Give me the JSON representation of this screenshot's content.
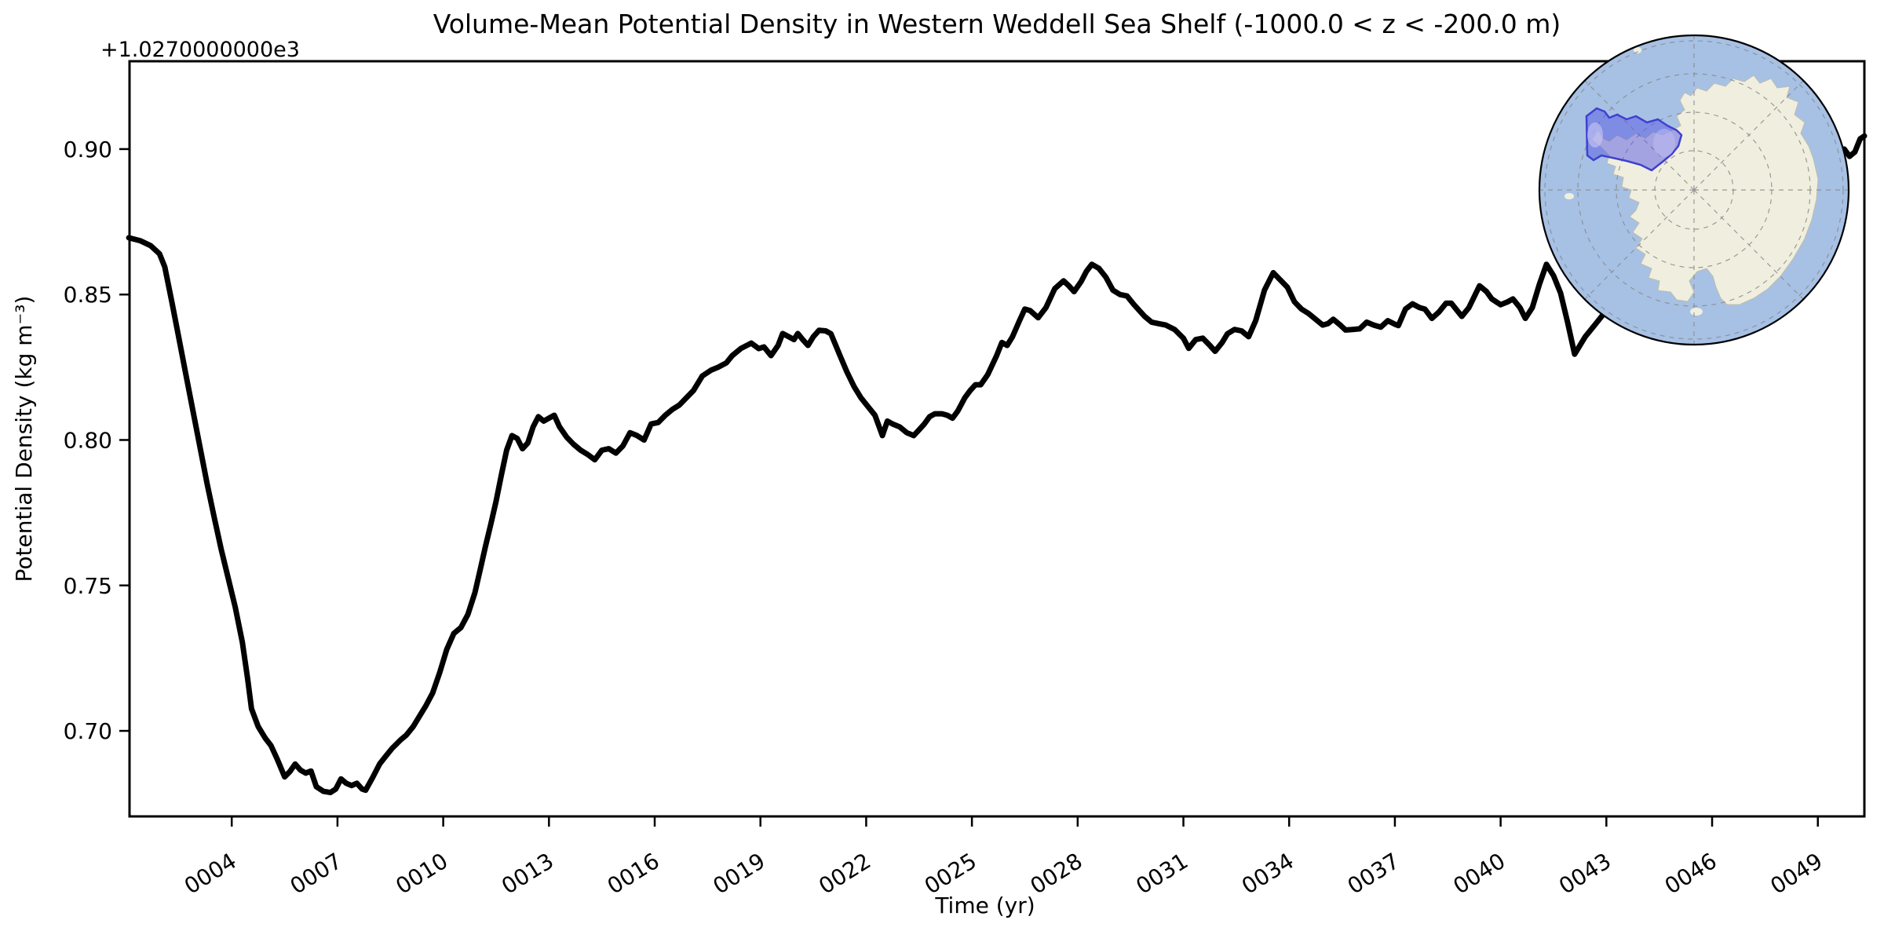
{
  "title": "Volume-Mean Potential Density in Western Weddell Sea Shelf (-1000.0 < z < -200.0 m)",
  "offset_text": "+1.0270000000e3",
  "x_axis": {
    "label": "Time (yr)",
    "tick_labels": [
      "0004",
      "0007",
      "0010",
      "0013",
      "0016",
      "0019",
      "0022",
      "0025",
      "0028",
      "0031",
      "0034",
      "0037",
      "0040",
      "0043",
      "0046",
      "0049"
    ],
    "tick_years": [
      4,
      7,
      10,
      13,
      16,
      19,
      22,
      25,
      28,
      31,
      34,
      37,
      40,
      43,
      46,
      49
    ]
  },
  "y_axis": {
    "label": "Potential Density (kg m⁻³)",
    "tick_labels": [
      "0.90",
      "0.85",
      "0.80",
      "0.75",
      "0.70"
    ],
    "tick_values": [
      0.9,
      0.85,
      0.8,
      0.75,
      0.7
    ]
  },
  "chart_data": {
    "type": "line",
    "title": "Volume-Mean Potential Density in Western Weddell Sea Shelf (-1000.0 < z < -200.0 m)",
    "xlabel": "Time (yr)",
    "ylabel": "Potential Density (kg m⁻³)",
    "y_offset_note": "y values are relative to +1.0270000000e3 kg m⁻³",
    "xlim": [
      1.1,
      50.32
    ],
    "ylim": [
      0.6706,
      0.9302
    ],
    "grid": false,
    "legend": "none",
    "line_color": "#000000",
    "line_width": 7,
    "points": [
      [
        1.08,
        0.8695
      ],
      [
        1.4,
        0.8685
      ],
      [
        1.7,
        0.8668
      ],
      [
        1.95,
        0.864
      ],
      [
        2.1,
        0.8595
      ],
      [
        2.3,
        0.8475
      ],
      [
        2.5,
        0.835
      ],
      [
        2.7,
        0.8225
      ],
      [
        2.9,
        0.81
      ],
      [
        3.1,
        0.7975
      ],
      [
        3.3,
        0.785
      ],
      [
        3.5,
        0.7735
      ],
      [
        3.7,
        0.7625
      ],
      [
        3.9,
        0.7525
      ],
      [
        4.1,
        0.7425
      ],
      [
        4.3,
        0.7305
      ],
      [
        4.45,
        0.718
      ],
      [
        4.56,
        0.7076
      ],
      [
        4.75,
        0.7015
      ],
      [
        4.95,
        0.6975
      ],
      [
        5.11,
        0.695
      ],
      [
        5.3,
        0.69
      ],
      [
        5.5,
        0.6842
      ],
      [
        5.65,
        0.686
      ],
      [
        5.8,
        0.6886
      ],
      [
        5.95,
        0.6865
      ],
      [
        6.1,
        0.6855
      ],
      [
        6.25,
        0.6862
      ],
      [
        6.4,
        0.6808
      ],
      [
        6.6,
        0.6792
      ],
      [
        6.8,
        0.6788
      ],
      [
        6.95,
        0.68
      ],
      [
        7.1,
        0.6835
      ],
      [
        7.25,
        0.682
      ],
      [
        7.4,
        0.6812
      ],
      [
        7.55,
        0.682
      ],
      [
        7.7,
        0.68
      ],
      [
        7.8,
        0.6796
      ],
      [
        8.0,
        0.684
      ],
      [
        8.2,
        0.6887
      ],
      [
        8.35,
        0.691
      ],
      [
        8.55,
        0.694
      ],
      [
        8.8,
        0.697
      ],
      [
        8.95,
        0.6985
      ],
      [
        9.15,
        0.7015
      ],
      [
        9.35,
        0.7055
      ],
      [
        9.5,
        0.7085
      ],
      [
        9.7,
        0.713
      ],
      [
        9.9,
        0.72
      ],
      [
        10.1,
        0.728
      ],
      [
        10.3,
        0.7335
      ],
      [
        10.5,
        0.7355
      ],
      [
        10.7,
        0.74
      ],
      [
        10.9,
        0.7475
      ],
      [
        11.05,
        0.7555
      ],
      [
        11.2,
        0.7635
      ],
      [
        11.35,
        0.771
      ],
      [
        11.5,
        0.779
      ],
      [
        11.65,
        0.788
      ],
      [
        11.8,
        0.7965
      ],
      [
        11.95,
        0.8015
      ],
      [
        12.1,
        0.8005
      ],
      [
        12.25,
        0.797
      ],
      [
        12.4,
        0.799
      ],
      [
        12.55,
        0.8045
      ],
      [
        12.7,
        0.808
      ],
      [
        12.85,
        0.8065
      ],
      [
        13.0,
        0.8075
      ],
      [
        13.15,
        0.8085
      ],
      [
        13.3,
        0.8045
      ],
      [
        13.5,
        0.801
      ],
      [
        13.7,
        0.7985
      ],
      [
        13.9,
        0.7965
      ],
      [
        14.1,
        0.795
      ],
      [
        14.3,
        0.7932
      ],
      [
        14.5,
        0.7965
      ],
      [
        14.7,
        0.797
      ],
      [
        14.9,
        0.7955
      ],
      [
        15.1,
        0.798
      ],
      [
        15.3,
        0.8025
      ],
      [
        15.5,
        0.8015
      ],
      [
        15.7,
        0.8
      ],
      [
        15.9,
        0.8055
      ],
      [
        16.1,
        0.806
      ],
      [
        16.3,
        0.8085
      ],
      [
        16.5,
        0.8105
      ],
      [
        16.7,
        0.812
      ],
      [
        16.9,
        0.8145
      ],
      [
        17.1,
        0.817
      ],
      [
        17.35,
        0.822
      ],
      [
        17.6,
        0.824
      ],
      [
        17.8,
        0.825
      ],
      [
        18.03,
        0.8265
      ],
      [
        18.2,
        0.829
      ],
      [
        18.45,
        0.8315
      ],
      [
        18.74,
        0.8333
      ],
      [
        18.95,
        0.8314
      ],
      [
        19.1,
        0.832
      ],
      [
        19.3,
        0.829
      ],
      [
        19.5,
        0.8325
      ],
      [
        19.63,
        0.8366
      ],
      [
        19.8,
        0.8355
      ],
      [
        19.95,
        0.8345
      ],
      [
        20.06,
        0.8366
      ],
      [
        20.2,
        0.8345
      ],
      [
        20.35,
        0.8325
      ],
      [
        20.5,
        0.8355
      ],
      [
        20.66,
        0.8377
      ],
      [
        20.85,
        0.8375
      ],
      [
        21.0,
        0.8365
      ],
      [
        21.24,
        0.8295
      ],
      [
        21.45,
        0.8235
      ],
      [
        21.65,
        0.8185
      ],
      [
        21.85,
        0.8145
      ],
      [
        22.05,
        0.8115
      ],
      [
        22.25,
        0.8085
      ],
      [
        22.46,
        0.8015
      ],
      [
        22.6,
        0.8065
      ],
      [
        22.75,
        0.8055
      ],
      [
        22.95,
        0.8045
      ],
      [
        23.15,
        0.8025
      ],
      [
        23.35,
        0.8015
      ],
      [
        23.5,
        0.8035
      ],
      [
        23.65,
        0.8055
      ],
      [
        23.8,
        0.808
      ],
      [
        23.95,
        0.809
      ],
      [
        24.15,
        0.809
      ],
      [
        24.3,
        0.8085
      ],
      [
        24.45,
        0.8075
      ],
      [
        24.6,
        0.81
      ],
      [
        24.8,
        0.8145
      ],
      [
        24.95,
        0.817
      ],
      [
        25.1,
        0.819
      ],
      [
        25.25,
        0.819
      ],
      [
        25.45,
        0.8225
      ],
      [
        25.7,
        0.829
      ],
      [
        25.85,
        0.8335
      ],
      [
        26.0,
        0.8325
      ],
      [
        26.15,
        0.8355
      ],
      [
        26.35,
        0.841
      ],
      [
        26.5,
        0.845
      ],
      [
        26.65,
        0.8445
      ],
      [
        26.88,
        0.842
      ],
      [
        27.1,
        0.8455
      ],
      [
        27.35,
        0.852
      ],
      [
        27.6,
        0.8547
      ],
      [
        27.75,
        0.853
      ],
      [
        27.9,
        0.851
      ],
      [
        28.1,
        0.8545
      ],
      [
        28.25,
        0.858
      ],
      [
        28.4,
        0.8604
      ],
      [
        28.6,
        0.859
      ],
      [
        28.8,
        0.856
      ],
      [
        29.0,
        0.8515
      ],
      [
        29.2,
        0.85
      ],
      [
        29.4,
        0.8495
      ],
      [
        29.6,
        0.8465
      ],
      [
        29.9,
        0.8425
      ],
      [
        30.1,
        0.8405
      ],
      [
        30.3,
        0.84
      ],
      [
        30.5,
        0.8395
      ],
      [
        30.75,
        0.838
      ],
      [
        31.0,
        0.835
      ],
      [
        31.15,
        0.8315
      ],
      [
        31.35,
        0.8345
      ],
      [
        31.55,
        0.835
      ],
      [
        31.75,
        0.8325
      ],
      [
        31.9,
        0.8305
      ],
      [
        32.1,
        0.8335
      ],
      [
        32.25,
        0.8365
      ],
      [
        32.45,
        0.838
      ],
      [
        32.65,
        0.8375
      ],
      [
        32.85,
        0.8355
      ],
      [
        33.05,
        0.841
      ],
      [
        33.3,
        0.8515
      ],
      [
        33.55,
        0.8575
      ],
      [
        33.75,
        0.855
      ],
      [
        33.95,
        0.8525
      ],
      [
        34.15,
        0.8475
      ],
      [
        34.35,
        0.845
      ],
      [
        34.55,
        0.8435
      ],
      [
        34.75,
        0.8415
      ],
      [
        34.95,
        0.8395
      ],
      [
        35.1,
        0.84
      ],
      [
        35.25,
        0.8415
      ],
      [
        35.45,
        0.8395
      ],
      [
        35.6,
        0.8378
      ],
      [
        35.8,
        0.838
      ],
      [
        36.0,
        0.8382
      ],
      [
        36.2,
        0.8405
      ],
      [
        36.4,
        0.8395
      ],
      [
        36.6,
        0.8388
      ],
      [
        36.8,
        0.841
      ],
      [
        37.0,
        0.8398
      ],
      [
        37.1,
        0.8393
      ],
      [
        37.3,
        0.845
      ],
      [
        37.5,
        0.8468
      ],
      [
        37.7,
        0.8455
      ],
      [
        37.85,
        0.845
      ],
      [
        38.05,
        0.8418
      ],
      [
        38.25,
        0.844
      ],
      [
        38.45,
        0.847
      ],
      [
        38.6,
        0.847
      ],
      [
        38.9,
        0.8425
      ],
      [
        39.1,
        0.8455
      ],
      [
        39.4,
        0.853
      ],
      [
        39.6,
        0.851
      ],
      [
        39.75,
        0.8485
      ],
      [
        40.0,
        0.8465
      ],
      [
        40.2,
        0.8475
      ],
      [
        40.35,
        0.8485
      ],
      [
        40.55,
        0.8455
      ],
      [
        40.7,
        0.8418
      ],
      [
        40.9,
        0.8455
      ],
      [
        41.1,
        0.8535
      ],
      [
        41.3,
        0.8604
      ],
      [
        41.5,
        0.8565
      ],
      [
        41.7,
        0.8505
      ],
      [
        41.9,
        0.8405
      ],
      [
        42.1,
        0.8295
      ],
      [
        42.4,
        0.8355
      ],
      [
        42.7,
        0.84
      ],
      [
        43.0,
        0.8445
      ],
      [
        43.3,
        0.848
      ],
      [
        43.6,
        0.8455
      ],
      [
        43.9,
        0.85
      ],
      [
        44.2,
        0.8535
      ],
      [
        44.5,
        0.851
      ],
      [
        44.8,
        0.8545
      ],
      [
        45.1,
        0.857
      ],
      [
        45.4,
        0.854
      ],
      [
        45.7,
        0.8575
      ],
      [
        46.0,
        0.86
      ],
      [
        46.3,
        0.8575
      ],
      [
        46.6,
        0.8615
      ],
      [
        46.9,
        0.865
      ],
      [
        47.2,
        0.8625
      ],
      [
        47.5,
        0.867
      ],
      [
        47.8,
        0.871
      ],
      [
        48.1,
        0.8745
      ],
      [
        48.4,
        0.879
      ],
      [
        48.7,
        0.8845
      ],
      [
        49.0,
        0.89
      ],
      [
        49.3,
        0.8945
      ],
      [
        49.55,
        0.8985
      ],
      [
        49.75,
        0.9
      ],
      [
        49.9,
        0.8975
      ],
      [
        50.05,
        0.899
      ],
      [
        50.2,
        0.9035
      ],
      [
        50.32,
        0.9045
      ]
    ]
  },
  "inset_map": {
    "description": "South polar stereographic map of Antarctica with the Western Weddell Sea shelf region highlighted",
    "ocean_color": "#a7c1e5",
    "land_color": "#f0efdf",
    "coast_color": "#bcbcaa",
    "graticule_color": "#8a8a8a",
    "border_color": "#000000",
    "highlight_fill": "rgba(88,88,228,0.5)",
    "highlight_edge": "#4040cf",
    "highlight_region": "Western Weddell Sea Shelf"
  }
}
